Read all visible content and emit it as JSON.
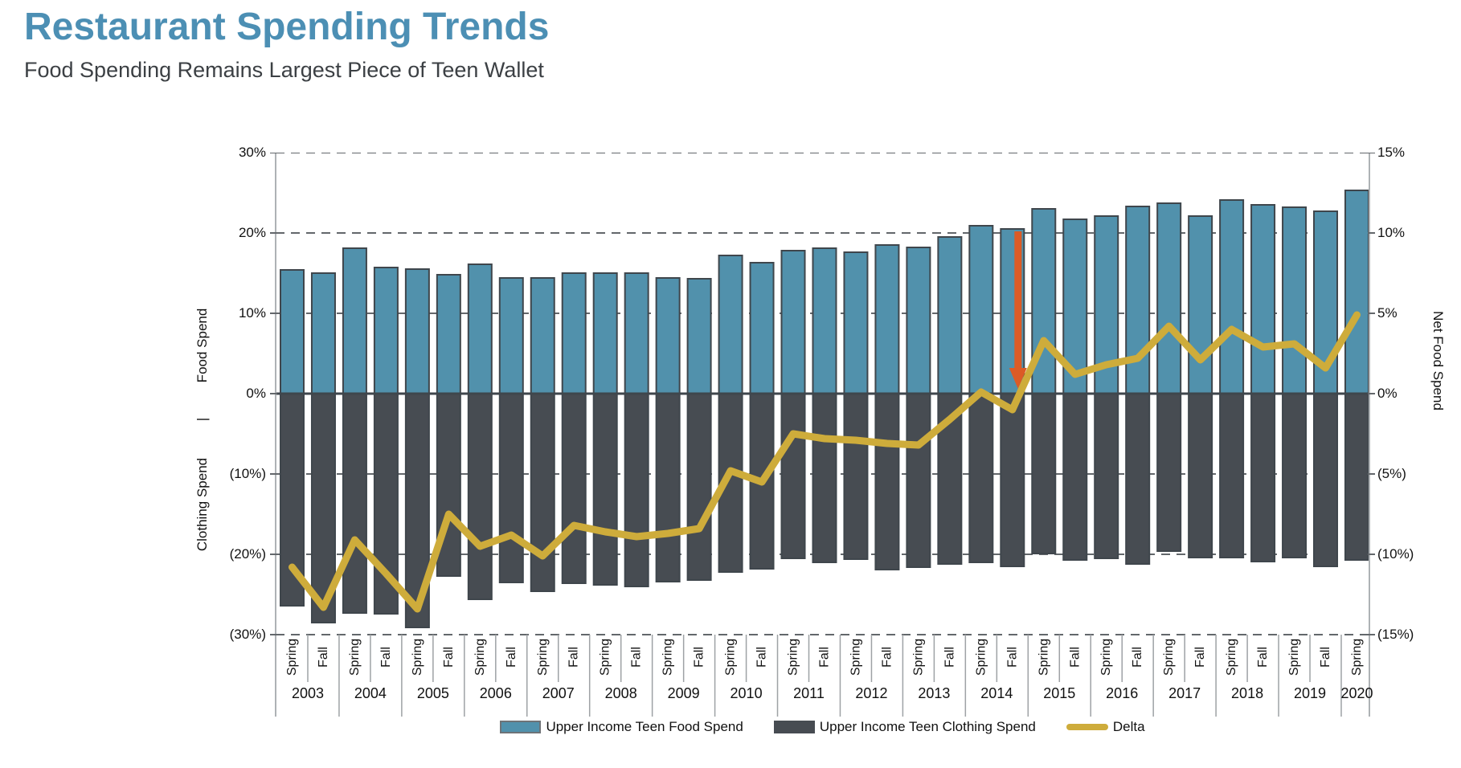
{
  "chart_data": {
    "type": "bar",
    "title": "Restaurant Spending Trends",
    "subtitle": "Food Spending Remains Largest Piece of Teen Wallet",
    "seasons": [
      "Spring",
      "Fall",
      "Spring",
      "Fall",
      "Spring",
      "Fall",
      "Spring",
      "Fall",
      "Spring",
      "Fall",
      "Spring",
      "Fall",
      "Spring",
      "Fall",
      "Spring",
      "Fall",
      "Spring",
      "Fall",
      "Spring",
      "Fall",
      "Spring",
      "Fall",
      "Spring",
      "Fall",
      "Spring",
      "Fall",
      "Spring",
      "Fall",
      "Spring",
      "Fall",
      "Spring",
      "Fall",
      "Spring",
      "Fall",
      "Spring"
    ],
    "year_groups": [
      {
        "label": "2003",
        "slots": 2
      },
      {
        "label": "2004",
        "slots": 2
      },
      {
        "label": "2005",
        "slots": 2
      },
      {
        "label": "2006",
        "slots": 2
      },
      {
        "label": "2007",
        "slots": 2
      },
      {
        "label": "2008",
        "slots": 2
      },
      {
        "label": "2009",
        "slots": 2
      },
      {
        "label": "2010",
        "slots": 2
      },
      {
        "label": "2011",
        "slots": 2
      },
      {
        "label": "2012",
        "slots": 2
      },
      {
        "label": "2013",
        "slots": 2
      },
      {
        "label": "2014",
        "slots": 2
      },
      {
        "label": "2015",
        "slots": 2
      },
      {
        "label": "2016",
        "slots": 2
      },
      {
        "label": "2017",
        "slots": 2
      },
      {
        "label": "2018",
        "slots": 2
      },
      {
        "label": "2019",
        "slots": 2
      },
      {
        "label": "2020",
        "slots": 1
      }
    ],
    "series": [
      {
        "name": "Upper Income Teen Food Spend",
        "type": "bar",
        "axis": "left",
        "color": "#5191AC",
        "values": [
          15.4,
          15.0,
          18.1,
          15.7,
          15.5,
          14.8,
          16.1,
          14.4,
          14.4,
          15.0,
          15.0,
          15.0,
          14.4,
          14.3,
          17.2,
          16.3,
          17.8,
          18.1,
          17.6,
          18.5,
          18.2,
          19.5,
          20.9,
          20.5,
          23.0,
          21.7,
          22.1,
          23.3,
          23.7,
          22.1,
          24.1,
          23.5,
          23.2,
          22.7,
          25.3
        ]
      },
      {
        "name": "Upper Income Teen Clothing Spend",
        "type": "bar",
        "axis": "left",
        "color": "#474C52",
        "values": [
          -26.4,
          -28.5,
          -27.3,
          -27.4,
          -29.1,
          -22.7,
          -25.6,
          -23.5,
          -24.6,
          -23.6,
          -23.8,
          -24.0,
          -23.4,
          -23.2,
          -22.2,
          -21.8,
          -20.5,
          -21.0,
          -20.6,
          -21.9,
          -21.6,
          -21.2,
          -21.0,
          -21.5,
          -19.9,
          -20.7,
          -20.5,
          -21.2,
          -19.6,
          -20.4,
          -20.4,
          -20.9,
          -20.4,
          -21.5,
          -20.7
        ]
      },
      {
        "name": "Delta",
        "type": "line",
        "axis": "right",
        "color": "#CEAC3B",
        "values": [
          -10.8,
          -13.3,
          -9.1,
          -11.2,
          -13.4,
          -7.5,
          -9.5,
          -8.8,
          -10.1,
          -8.2,
          -8.6,
          -8.9,
          -8.7,
          -8.4,
          -4.8,
          -5.5,
          -2.5,
          -2.8,
          -2.9,
          -3.1,
          -3.2,
          -1.6,
          0.1,
          -1.0,
          3.3,
          1.2,
          1.8,
          2.2,
          4.2,
          2.1,
          4.0,
          2.9,
          3.1,
          1.6,
          4.9
        ]
      }
    ],
    "left_axis": {
      "label_food": "Food Spend",
      "label_sep": "|",
      "label_clothing": "Clothing Spend",
      "range": [
        -30,
        30
      ],
      "grid": "dashed",
      "ticks": [
        {
          "v": 30,
          "label": "30%"
        },
        {
          "v": 20,
          "label": "20%"
        },
        {
          "v": 10,
          "label": "10%"
        },
        {
          "v": 0,
          "label": "0%"
        },
        {
          "v": -10,
          "label": "(10%)"
        },
        {
          "v": -20,
          "label": "(20%)"
        },
        {
          "v": -30,
          "label": "(30%)"
        }
      ]
    },
    "right_axis": {
      "label": "Net Food Spend",
      "range": [
        -15,
        15
      ],
      "ticks": [
        {
          "v": 15,
          "label": "15%"
        },
        {
          "v": 10,
          "label": "10%"
        },
        {
          "v": 5,
          "label": "5%"
        },
        {
          "v": 0,
          "label": "0%"
        },
        {
          "v": -5,
          "label": "(5%)"
        },
        {
          "v": -10,
          "label": "(10%)"
        },
        {
          "v": -15,
          "label": "(15%)"
        }
      ]
    },
    "annotation": {
      "type": "down-arrow",
      "slot_index": 23,
      "season": "Fall",
      "year": "2014",
      "from_right_value": 10.1,
      "to_right_value": 0.3,
      "color": "#DC5B26"
    },
    "colors": {
      "title": "#4C8FB4",
      "subtitle": "#3C4044",
      "food_bar": "#5191AC",
      "clothing_bar": "#474C52",
      "bar_border": "#3F464C",
      "delta_line": "#CEAC3B",
      "arrow": "#DC5B26",
      "gridline": "#63676B",
      "zero_line": "#3F464C",
      "axis_line": "#AEB2B5",
      "separator": "#9EA2A5"
    }
  }
}
